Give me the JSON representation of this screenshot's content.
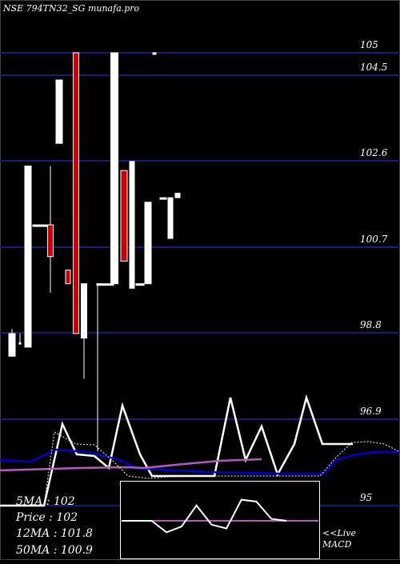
{
  "header": {
    "watermark": "NSE 794TN32_SG munafa.pro"
  },
  "chart_data": {
    "type": "candlestick",
    "price_axis": {
      "ticks": [
        105,
        104.5,
        102.6,
        100.7,
        98.8,
        96.9,
        95
      ],
      "labels": [
        "105",
        "104.5",
        "102.6",
        "100.7",
        "98.8",
        "96.9",
        "95"
      ]
    },
    "candles": [
      {
        "open": 98.3,
        "close": 98.8,
        "high": 98.9,
        "low": 98.3,
        "color": "white"
      },
      {
        "open": 98.6,
        "close": 98.6,
        "high": 98.8,
        "low": 98.6,
        "color": "white"
      },
      {
        "open": 98.5,
        "close": 102.5,
        "high": 102.5,
        "low": 98.5,
        "color": "white"
      },
      {
        "open": 101.2,
        "close": 101.2,
        "high": 101.2,
        "low": 101.2,
        "color": "white"
      },
      {
        "open": 101.2,
        "close": 100.5,
        "high": 102.5,
        "low": 99.7,
        "color": "red"
      },
      {
        "open": 104.4,
        "close": 103.0,
        "high": 104.4,
        "low": 103.0,
        "color": "white"
      },
      {
        "open": 100.2,
        "close": 99.9,
        "high": 100.2,
        "low": 99.9,
        "color": "red"
      },
      {
        "open": 105.0,
        "close": 98.8,
        "high": 105.0,
        "low": 98.8,
        "color": "red"
      },
      {
        "open": 98.7,
        "close": 99.9,
        "high": 99.9,
        "low": 97.8,
        "color": "white"
      },
      {
        "open": 99.9,
        "close": 99.9,
        "high": 99.9,
        "low": 96.2,
        "color": "white"
      },
      {
        "open": 99.9,
        "close": 99.9,
        "high": 99.9,
        "low": 99.9,
        "color": "white"
      },
      {
        "open": 99.9,
        "close": 105.0,
        "high": 105.0,
        "low": 99.9,
        "color": "white"
      },
      {
        "open": 102.4,
        "close": 100.4,
        "high": 102.4,
        "low": 100.4,
        "color": "red"
      },
      {
        "open": 99.8,
        "close": 102.6,
        "high": 102.6,
        "low": 99.8,
        "color": "white"
      },
      {
        "open": 99.9,
        "close": 99.9,
        "high": 99.9,
        "low": 99.9,
        "color": "white"
      },
      {
        "open": 99.9,
        "close": 101.7,
        "high": 101.7,
        "low": 99.9,
        "color": "white"
      },
      {
        "open": 105.0,
        "close": 105.0,
        "high": 105.0,
        "low": 105.0,
        "color": "white"
      },
      {
        "open": 101.8,
        "close": 101.8,
        "high": 101.8,
        "low": 101.8,
        "color": "white"
      },
      {
        "open": 100.9,
        "close": 101.8,
        "high": 101.8,
        "low": 100.9,
        "color": "white"
      },
      {
        "open": 101.8,
        "close": 101.9,
        "high": 101.9,
        "low": 101.8,
        "color": "white"
      }
    ],
    "indicator_lines": [
      {
        "name": "ma-white",
        "color": "#ffffff",
        "points": [
          [
            0,
            632
          ],
          [
            55,
            632
          ],
          [
            78,
            530
          ],
          [
            96,
            568
          ],
          [
            118,
            570
          ],
          [
            136,
            585
          ],
          [
            153,
            507
          ],
          [
            175,
            568
          ],
          [
            190,
            595
          ],
          [
            210,
            595
          ],
          [
            230,
            595
          ],
          [
            268,
            595
          ],
          [
            288,
            497
          ],
          [
            307,
            575
          ],
          [
            327,
            533
          ],
          [
            347,
            593
          ],
          [
            368,
            555
          ],
          [
            383,
            497
          ],
          [
            403,
            555
          ],
          [
            441,
            555
          ]
        ]
      },
      {
        "name": "ma-blue",
        "color": "#0000cc",
        "points": [
          [
            0,
            575
          ],
          [
            38,
            577
          ],
          [
            70,
            562
          ],
          [
            110,
            565
          ],
          [
            150,
            575
          ],
          [
            170,
            585
          ],
          [
            200,
            587
          ],
          [
            260,
            590
          ],
          [
            300,
            591
          ],
          [
            350,
            592
          ],
          [
            405,
            592
          ],
          [
            420,
            575
          ],
          [
            445,
            568
          ],
          [
            470,
            565
          ],
          [
            500,
            565
          ]
        ]
      },
      {
        "name": "ma-violet",
        "color": "#b25bbd",
        "points": [
          [
            0,
            588
          ],
          [
            100,
            585
          ],
          [
            160,
            584
          ],
          [
            180,
            585
          ],
          [
            230,
            580
          ],
          [
            275,
            576
          ],
          [
            300,
            575
          ],
          [
            327,
            574
          ]
        ]
      },
      {
        "name": "ma-dotted",
        "color": "#ffffff",
        "dashed": true,
        "points": [
          [
            0,
            632
          ],
          [
            55,
            632
          ],
          [
            68,
            540
          ],
          [
            95,
            555
          ],
          [
            118,
            556
          ],
          [
            140,
            575
          ],
          [
            160,
            595
          ],
          [
            185,
            598
          ],
          [
            210,
            596
          ],
          [
            260,
            595
          ],
          [
            300,
            595
          ],
          [
            340,
            595
          ],
          [
            400,
            595
          ],
          [
            420,
            572
          ],
          [
            440,
            553
          ],
          [
            460,
            552
          ],
          [
            480,
            555
          ],
          [
            500,
            565
          ]
        ]
      }
    ],
    "macd": {
      "ylim": [
        -1,
        1
      ],
      "values": [
        0.0,
        0.0,
        0.0,
        -0.3,
        -0.15,
        0.4,
        -0.1,
        -0.2,
        0.55,
        0.5,
        0.05,
        0.0
      ],
      "signal": 0.0
    }
  },
  "stats": {
    "ma5": "5MA : 102",
    "price": "Price  : 102",
    "ma12": "12MA : 101.8",
    "ma50": "50MA : 100.9"
  },
  "macd_labels": {
    "live": "<<Live",
    "macd": "MACD"
  }
}
